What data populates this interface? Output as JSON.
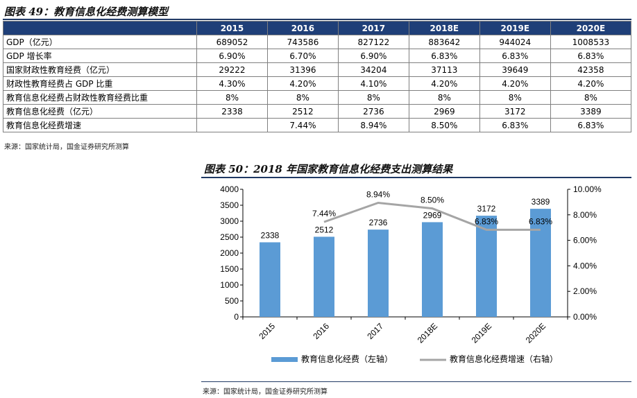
{
  "table_title": "图表 49：教育信息化经费测算模型",
  "table": {
    "columns": [
      "2015",
      "2016",
      "2017",
      "2018E",
      "2019E",
      "2020E"
    ],
    "rows": [
      {
        "label": "GDP（亿元）",
        "values": [
          "689052",
          "743586",
          "827122",
          "883642",
          "944024",
          "1008533"
        ]
      },
      {
        "label": "GDP 增长率",
        "values": [
          "6.90%",
          "6.70%",
          "6.90%",
          "6.83%",
          "6.83%",
          "6.83%"
        ]
      },
      {
        "label": "国家财政性教育经费（亿元）",
        "values": [
          "29222",
          "31396",
          "34204",
          "37113",
          "39649",
          "42358"
        ]
      },
      {
        "label": "财政性教育经费占 GDP 比重",
        "values": [
          "4.30%",
          "4.20%",
          "4.10%",
          "4.20%",
          "4.20%",
          "4.20%"
        ]
      },
      {
        "label": "教育信息化经费占财政性教育经费比重",
        "values": [
          "8%",
          "8%",
          "8%",
          "8%",
          "8%",
          "8%"
        ]
      },
      {
        "label": "教育信息化经费（亿元）",
        "values": [
          "2338",
          "2512",
          "2736",
          "2969",
          "3172",
          "3389"
        ]
      },
      {
        "label": "教育信息化经费增速",
        "values": [
          "",
          "7.44%",
          "8.94%",
          "8.50%",
          "6.83%",
          "6.83%"
        ]
      }
    ]
  },
  "source_1": "来源：国家统计局，国金证券研究所测算",
  "chart_title": "图表 50：2018 年国家教育信息化经费支出测算结果",
  "source_2": "来源：国家统计局，国金证券研究所测算",
  "colors": {
    "bar": "#5b9bd5",
    "line": "#a5a5a5",
    "header_bg": "#1f3f78"
  },
  "chart_data": {
    "type": "bar",
    "title": "",
    "categories": [
      "2015",
      "2016",
      "2017",
      "2018E",
      "2019E",
      "2020E"
    ],
    "series": [
      {
        "name": "教育信息化经费（左轴）",
        "type": "bar",
        "axis": "left",
        "values": [
          2338,
          2512,
          2736,
          2969,
          3172,
          3389
        ],
        "labels": [
          "2338",
          "2512",
          "2736",
          "2969",
          "3172",
          "3389"
        ]
      },
      {
        "name": "教育信息化经费增速（右轴）",
        "type": "line",
        "axis": "right",
        "values": [
          null,
          7.44,
          8.94,
          8.5,
          6.83,
          6.83
        ],
        "labels": [
          "",
          "7.44%",
          "8.94%",
          "8.50%",
          "6.83%",
          "6.83%"
        ]
      }
    ],
    "y_left": {
      "min": 0,
      "max": 4000,
      "step": 500,
      "ticks": [
        "0",
        "500",
        "1000",
        "1500",
        "2000",
        "2500",
        "3000",
        "3500",
        "4000"
      ]
    },
    "y_right": {
      "min": 0,
      "max": 10,
      "step": 2,
      "ticks": [
        "0.00%",
        "2.00%",
        "4.00%",
        "6.00%",
        "8.00%",
        "10.00%"
      ]
    },
    "grid": false,
    "legend_position": "bottom"
  }
}
